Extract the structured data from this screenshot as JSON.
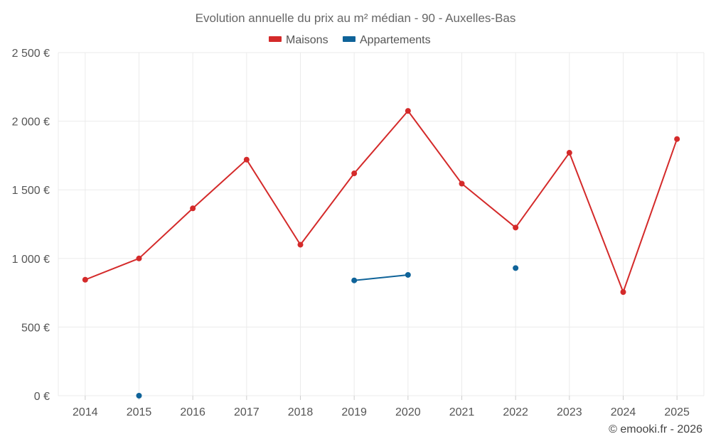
{
  "chart_data": {
    "type": "line",
    "title": "Evolution annuelle du prix au m² médian - 90 - Auxelles-Bas",
    "categories": [
      "2014",
      "2015",
      "2016",
      "2017",
      "2018",
      "2019",
      "2020",
      "2021",
      "2022",
      "2023",
      "2024",
      "2025"
    ],
    "series": [
      {
        "name": "Maisons",
        "color": "#d42a2a",
        "values": [
          845,
          1000,
          1365,
          1720,
          1100,
          1620,
          2075,
          1545,
          1225,
          1770,
          755,
          1870
        ]
      },
      {
        "name": "Appartements",
        "color": "#0f6399",
        "values": [
          null,
          0,
          null,
          null,
          null,
          840,
          880,
          null,
          930,
          null,
          null,
          null
        ]
      }
    ],
    "y_ticks": [
      0,
      500,
      1000,
      1500,
      2000,
      2500
    ],
    "y_tick_labels": [
      "0 €",
      "500 €",
      "1 000 €",
      "1 500 €",
      "2 000 €",
      "2 500 €"
    ],
    "ylim": [
      0,
      2500
    ],
    "xlabel": "",
    "ylabel": "",
    "legend_position": "top-center",
    "grid": true
  },
  "credit": "© emooki.fr - 2026"
}
